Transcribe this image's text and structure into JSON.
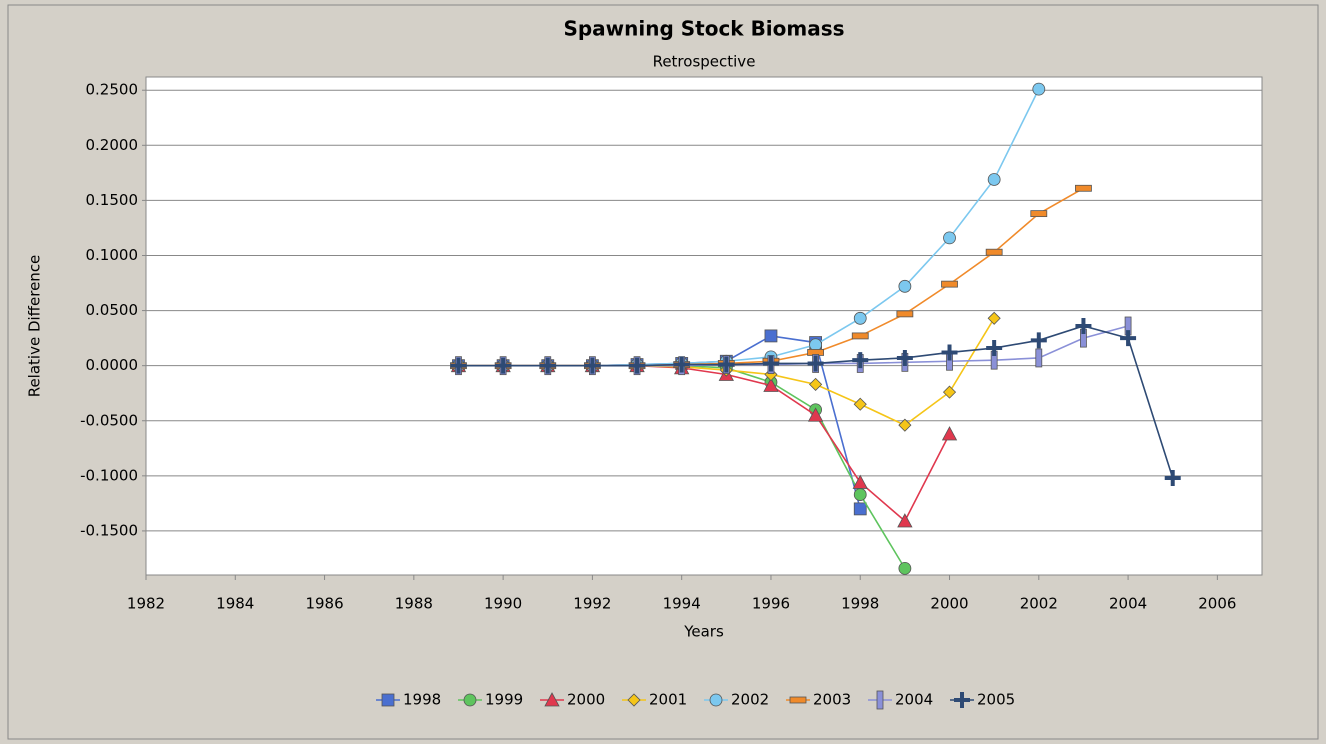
{
  "chart_data": {
    "type": "line",
    "title": "Spawning Stock Biomass",
    "subtitle": "Retrospective",
    "x_label": "Years",
    "y_label": "Relative Difference",
    "x": [
      1989,
      1990,
      1991,
      1992,
      1993,
      1994,
      1995,
      1996,
      1997,
      1998,
      1999,
      2000,
      2001,
      2002,
      2003,
      2004,
      2005
    ],
    "xlim": [
      1982,
      2007
    ],
    "xticks": [
      1982,
      1984,
      1986,
      1988,
      1990,
      1992,
      1994,
      1996,
      1998,
      2000,
      2002,
      2004,
      2006
    ],
    "ylim": [
      -0.19,
      0.262
    ],
    "yticks": [
      {
        "value": -0.15,
        "label": "-0.1500"
      },
      {
        "value": -0.1,
        "label": "-0.1000"
      },
      {
        "value": -0.05,
        "label": "-0.0500"
      },
      {
        "value": 0,
        "label": "0.0000"
      },
      {
        "value": 0.05,
        "label": "0.0500"
      },
      {
        "value": 0.1,
        "label": "0.1000"
      },
      {
        "value": 0.15,
        "label": "0.1500"
      },
      {
        "value": 0.2,
        "label": "0.2000"
      },
      {
        "value": 0.25,
        "label": "0.2500"
      }
    ],
    "grid": true,
    "legend": "bottom",
    "series": [
      {
        "name": "1998",
        "color": "#4a6fd0",
        "marker": "square",
        "values": [
          0,
          0,
          0,
          0,
          0.001,
          0.002,
          0.004,
          0.027,
          0.021,
          -0.13,
          null,
          null,
          null,
          null,
          null,
          null,
          null
        ]
      },
      {
        "name": "1999",
        "color": "#5ec45e",
        "marker": "circle",
        "values": [
          0,
          0,
          0,
          0,
          0,
          0,
          -0.002,
          -0.015,
          -0.04,
          -0.117,
          -0.184,
          null,
          null,
          null,
          null,
          null,
          null
        ]
      },
      {
        "name": "2000",
        "color": "#e0384e",
        "marker": "triangle",
        "values": [
          0,
          0,
          0,
          0,
          0,
          -0.002,
          -0.008,
          -0.018,
          -0.045,
          -0.106,
          -0.141,
          -0.062,
          null,
          null,
          null,
          null,
          null
        ]
      },
      {
        "name": "2001",
        "color": "#f5c518",
        "marker": "diamond",
        "values": [
          0,
          0,
          0,
          0,
          0,
          -0.001,
          -0.004,
          -0.008,
          -0.017,
          -0.035,
          -0.054,
          -0.024,
          0.043,
          null,
          null,
          null,
          null
        ]
      },
      {
        "name": "2002",
        "color": "#7cc8ef",
        "marker": "circle",
        "values": [
          0,
          0,
          0,
          0,
          0.001,
          0.002,
          0.004,
          0.008,
          0.019,
          0.043,
          0.072,
          0.116,
          0.169,
          0.251,
          null,
          null,
          null
        ]
      },
      {
        "name": "2003",
        "color": "#f08a2a",
        "marker": "dash",
        "values": [
          0,
          0,
          0,
          0,
          0,
          0.001,
          0.002,
          0.004,
          0.012,
          0.027,
          0.047,
          0.074,
          0.103,
          0.138,
          0.161,
          null,
          null
        ]
      },
      {
        "name": "2004",
        "color": "#8a90d8",
        "marker": "bar",
        "values": [
          0,
          0,
          0,
          0,
          0,
          0,
          0.001,
          0.001,
          0.002,
          0.002,
          0.003,
          0.004,
          0.005,
          0.007,
          0.025,
          0.036,
          null
        ]
      },
      {
        "name": "2005",
        "color": "#2e4a74",
        "marker": "plus",
        "values": [
          0,
          0,
          0,
          0,
          0,
          0.001,
          0.001,
          0.002,
          0.002,
          0.005,
          0.007,
          0.012,
          0.016,
          0.023,
          0.036,
          0.025,
          -0.102
        ]
      }
    ]
  }
}
